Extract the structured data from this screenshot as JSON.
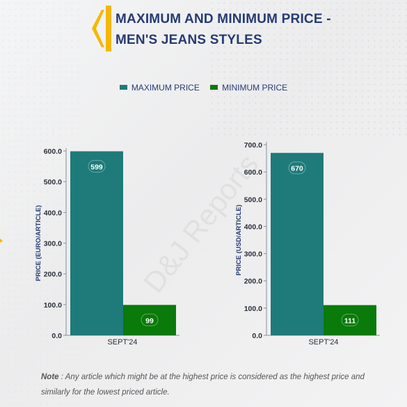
{
  "header": {
    "title_line1": "MAXIMUM AND MINIMUM PRICE -",
    "title_line2": "MEN'S JEANS STYLES"
  },
  "legend": {
    "max_label": "MAXIMUM PRICE",
    "min_label": "MINIMUM PRICE"
  },
  "colors": {
    "max": "#1e7b79",
    "min": "#0a7a0a",
    "accent": "#f5b800",
    "title": "#263b73"
  },
  "watermark": "D&J Reports",
  "chart_data": [
    {
      "type": "bar",
      "categories": [
        "SEPT'24"
      ],
      "series": [
        {
          "name": "MAXIMUM PRICE",
          "values": [
            599
          ]
        },
        {
          "name": "MINIMUM PRICE",
          "values": [
            99
          ]
        }
      ],
      "ylabel": "PRICE (EURO/ARTICLE)",
      "ylim": [
        0,
        600
      ],
      "yticks": [
        "0.0",
        "100.0",
        "200.0",
        "300.0",
        "400.0",
        "500.0",
        "600.0"
      ],
      "data_labels": [
        "599",
        "99"
      ]
    },
    {
      "type": "bar",
      "categories": [
        "SEPT'24"
      ],
      "series": [
        {
          "name": "MAXIMUM PRICE",
          "values": [
            670
          ]
        },
        {
          "name": "MINIMUM PRICE",
          "values": [
            111
          ]
        }
      ],
      "ylabel": "PRICE (USD/ARTICLE)",
      "ylim": [
        0,
        700
      ],
      "yticks": [
        "0.0",
        "100.0",
        "200.0",
        "300.0",
        "400.0",
        "500.0",
        "600.0",
        "700.0"
      ],
      "data_labels": [
        "670",
        "111"
      ]
    }
  ],
  "note": {
    "label": "Note",
    "text": " : Any article which might be at the highest price is considered as the highest price and similarly for the lowest priced article."
  }
}
